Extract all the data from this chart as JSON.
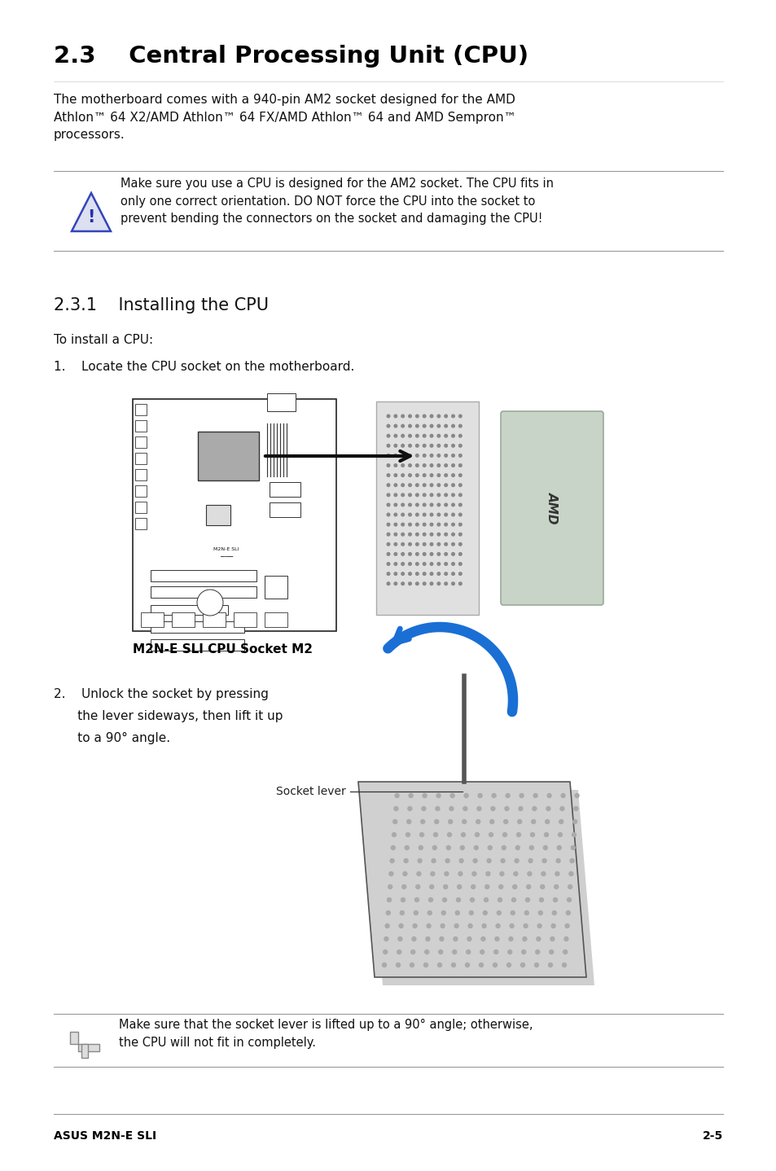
{
  "bg_color": "#ffffff",
  "title": "2.3    Central Processing Unit (CPU)",
  "body_text_1": "The motherboard comes with a 940-pin AM2 socket designed for the AMD\nAthlon™ 64 X2/AMD Athlon™ 64 FX/AMD Athlon™ 64 and AMD Sempron™\nprocessors.",
  "warning_text": "Make sure you use a CPU is designed for the AM2 socket. The CPU fits in\nonly one correct orientation. DO NOT force the CPU into the socket to\nprevent bending the connectors on the socket and damaging the CPU!",
  "section_231": "2.3.1    Installing the CPU",
  "to_install": "To install a CPU:",
  "step1": "1.    Locate the CPU socket on the motherboard.",
  "socket_label": "M2N-E SLI CPU Socket M2",
  "step2_line1": "2.    Unlock the socket by pressing",
  "step2_line2": "      the lever sideways, then lift it up",
  "step2_line3": "      to a 90° angle.",
  "socket_lever_label": "Socket lever",
  "note_text": "Make sure that the socket lever is lifted up to a 90° angle; otherwise,\nthe CPU will not fit in completely.",
  "footer_left": "ASUS M2N-E SLI",
  "footer_right": "2-5"
}
